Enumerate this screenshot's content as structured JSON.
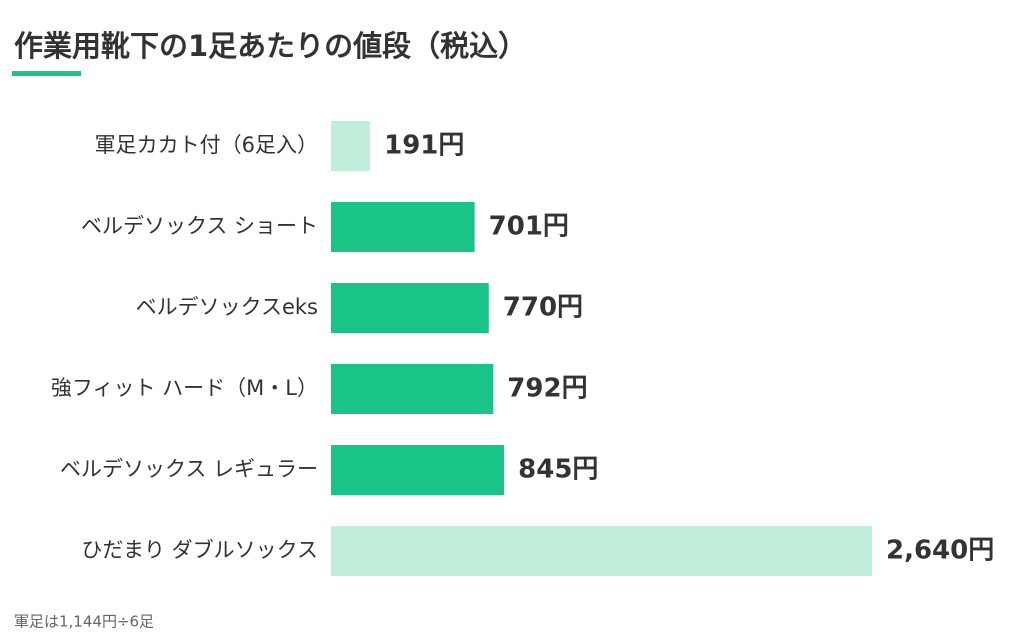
{
  "chart_data": {
    "type": "bar",
    "orientation": "horizontal",
    "title": "作業用靴下の1足あたりの値段（税込）",
    "categories": [
      "軍足カカト付（6足入）",
      "ベルデソックス ショート",
      "ベルデソックスeks",
      "強フィット ハード（M・L）",
      "ベルデソックス レギュラー",
      "ひだまり ダブルソックス"
    ],
    "values": [
      191,
      701,
      770,
      792,
      845,
      2640
    ],
    "value_labels": [
      "191円",
      "701円",
      "770円",
      "792円",
      "845円",
      "2,640円"
    ],
    "colors": [
      "#c0eedb",
      "#1ac486",
      "#1ac486",
      "#1ac486",
      "#1ac486",
      "#c0eedb"
    ],
    "note": "軍足は1,144円÷6足"
  }
}
